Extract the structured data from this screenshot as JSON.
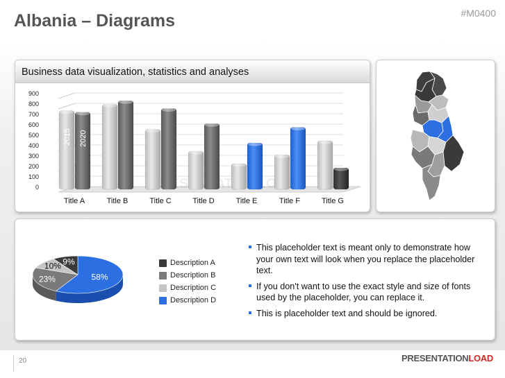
{
  "header": {
    "title": "Albania – Diagrams",
    "slide_code": "#M0400"
  },
  "colors": {
    "blue": "#2b6fe3",
    "dark_gray": "#555555",
    "mid_gray": "#8a8a8a",
    "light_gray": "#c4c4c4",
    "brand_red": "#d8261c"
  },
  "chart_panel": {
    "title": "Business data visualization, statistics and analyses"
  },
  "watermark": "PRESENTATIONLOAD",
  "chart_data": [
    {
      "type": "bar",
      "title": "Business data visualization, statistics and analyses",
      "categories": [
        "Title A",
        "Title B",
        "Title C",
        "Title D",
        "Title E",
        "Title F",
        "Title G"
      ],
      "series": [
        {
          "name": "2015",
          "values": [
            730,
            790,
            550,
            340,
            220,
            305,
            440
          ]
        },
        {
          "name": "2020",
          "values": [
            715,
            825,
            750,
            605,
            420,
            570,
            180
          ]
        }
      ],
      "yticks": [
        0,
        100,
        200,
        300,
        400,
        500,
        600,
        700,
        800,
        900
      ],
      "ylim": [
        0,
        900
      ],
      "grid": true,
      "highlight": [
        "Title E",
        "Title F"
      ]
    },
    {
      "type": "pie",
      "slices": [
        {
          "label": "Description A",
          "value": 9,
          "text": "9%"
        },
        {
          "label": "Description B",
          "value": 23,
          "text": "23%"
        },
        {
          "label": "Description C",
          "value": 10,
          "text": "10%"
        },
        {
          "label": "Description D",
          "value": 58,
          "text": "58%"
        }
      ]
    }
  ],
  "legend": {
    "items": [
      "Description A",
      "Description B",
      "Description C",
      "Description D"
    ]
  },
  "bullets": [
    "This placeholder text is meant only to demonstrate how your own text will look when you replace the placeholder text.",
    "If you don't want to use the exact style and size of fonts used by the placeholder, you can replace it.",
    "This is placeholder text and should be ignored."
  ],
  "map": {
    "icon": "albania-map-icon"
  },
  "footer": {
    "page_number": "20",
    "brand_part1": "PRESENTATION",
    "brand_part2": "LOAD"
  }
}
